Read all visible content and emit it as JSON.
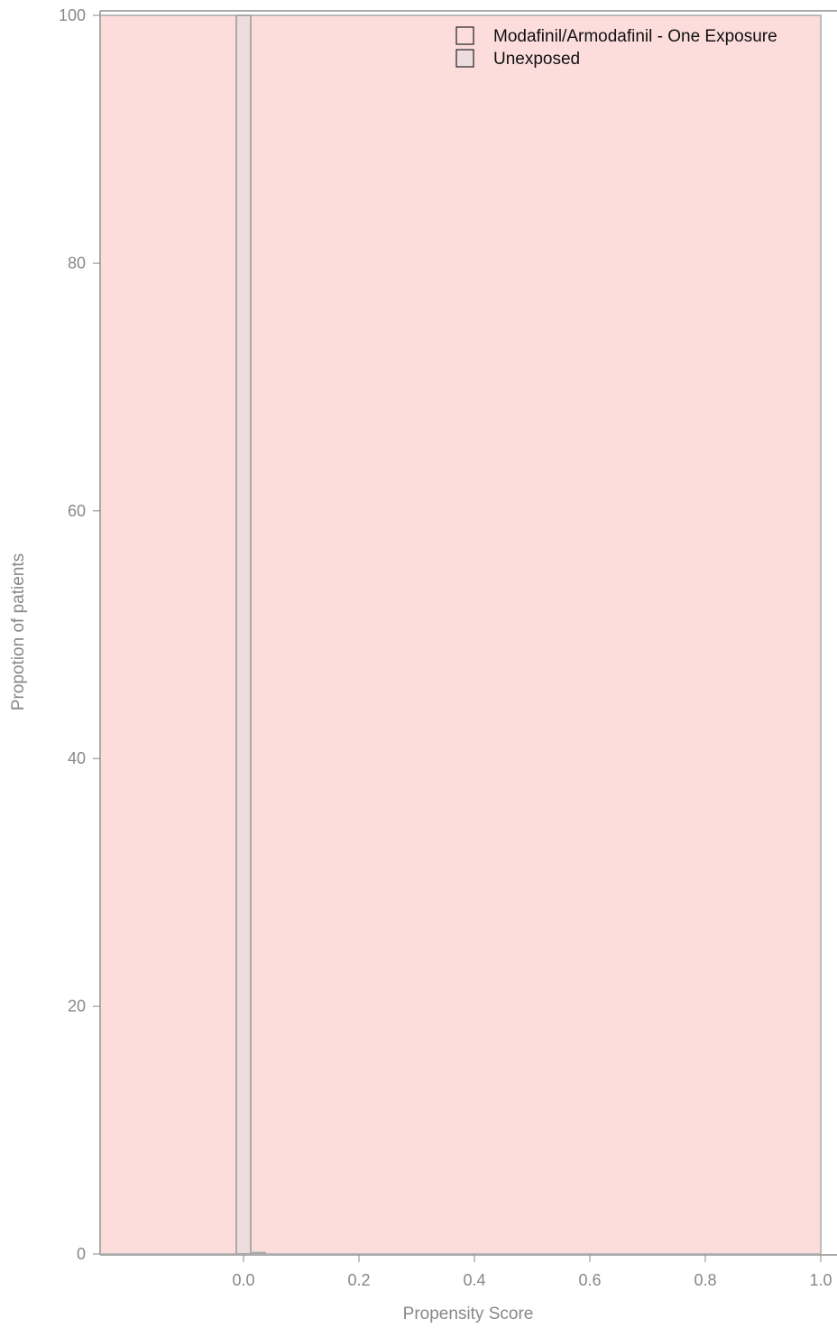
{
  "chart_data": {
    "type": "bar",
    "title": "",
    "xlabel": "Propensity Score",
    "ylabel": "Propotion of patients",
    "xlim": [
      -0.25,
      1.0
    ],
    "ylim": [
      0,
      100
    ],
    "x_ticks": [
      0.0,
      0.2,
      0.4,
      0.6,
      0.8,
      1.0
    ],
    "x_tick_labels": [
      "0.0",
      "0.2",
      "0.4",
      "0.6",
      "0.8",
      "1.0"
    ],
    "y_ticks": [
      0,
      20,
      40,
      60,
      80,
      100
    ],
    "y_tick_labels": [
      "0",
      "20",
      "40",
      "60",
      "80",
      "100"
    ],
    "grid": false,
    "legend_position": "top-right",
    "series": [
      {
        "name": "Modafinil/Armodafinil - One Exposure",
        "color": "#fddcdc",
        "stroke": "#bbbbbb",
        "bins": [
          {
            "x0": -0.25,
            "x1": 1.0,
            "value": 100
          }
        ]
      },
      {
        "name": "Unexposed",
        "color": "#eeddde",
        "stroke": "#aaaaaa",
        "bins": [
          {
            "x0": -0.0125,
            "x1": 0.0125,
            "value": 100
          },
          {
            "x0": 0.0125,
            "x1": 0.0375,
            "value": 0.1
          }
        ]
      }
    ]
  }
}
